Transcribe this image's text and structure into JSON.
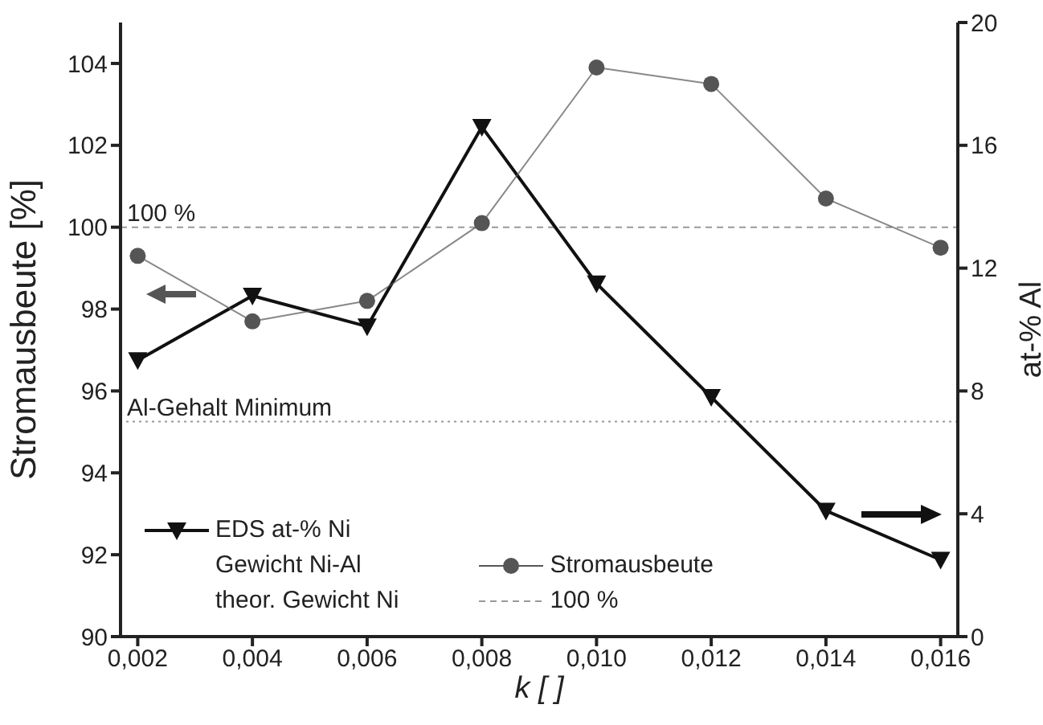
{
  "chart_data": {
    "type": "line",
    "xlabel": "k  [ ]",
    "ylabel": "Stromausbeute [%]",
    "y2label": "at-% Al",
    "x": [
      0.002,
      0.004,
      0.006,
      0.008,
      0.01,
      0.012,
      0.014,
      0.016
    ],
    "series": [
      {
        "name": "EDS at-% Ni",
        "color": "#111111",
        "axis": "y2",
        "marker": "triangle",
        "values": [
          9.0,
          11.1,
          10.1,
          16.6,
          11.5,
          7.8,
          4.1,
          2.5
        ]
      },
      {
        "name": "Stromausbeute",
        "color": "#555555",
        "axis": "y",
        "marker": "circle",
        "values": [
          99.3,
          97.7,
          98.2,
          100.1,
          103.9,
          103.5,
          100.7,
          99.5
        ]
      }
    ],
    "xlim": [
      0.0017,
      0.0163
    ],
    "xticks": [
      {
        "value": 0.002,
        "label": "0,002"
      },
      {
        "value": 0.004,
        "label": "0,004"
      },
      {
        "value": 0.006,
        "label": "0,006"
      },
      {
        "value": 0.008,
        "label": "0,008"
      },
      {
        "value": 0.01,
        "label": "0,010"
      },
      {
        "value": 0.012,
        "label": "0,012"
      },
      {
        "value": 0.014,
        "label": "0,014"
      },
      {
        "value": 0.016,
        "label": "0,016"
      }
    ],
    "ylim": [
      90,
      105
    ],
    "yticks": [
      90,
      92,
      94,
      96,
      98,
      100,
      102,
      104
    ],
    "y2lim": [
      0,
      20
    ],
    "y2ticks": [
      0,
      4,
      8,
      12,
      16,
      20
    ],
    "ref_lines": [
      {
        "axis": "y",
        "value": 100,
        "label": "100 %",
        "color": "#999999",
        "line_style": "dashed"
      },
      {
        "axis": "y2",
        "value": 7,
        "label": "Al-Gehalt Minimum",
        "color": "#999999",
        "line_style": "dotted"
      }
    ],
    "annotations": [
      "Gewicht Ni-Al",
      "theor. Gewicht Ni"
    ],
    "legend": "bottom left",
    "line_style": "solid"
  }
}
